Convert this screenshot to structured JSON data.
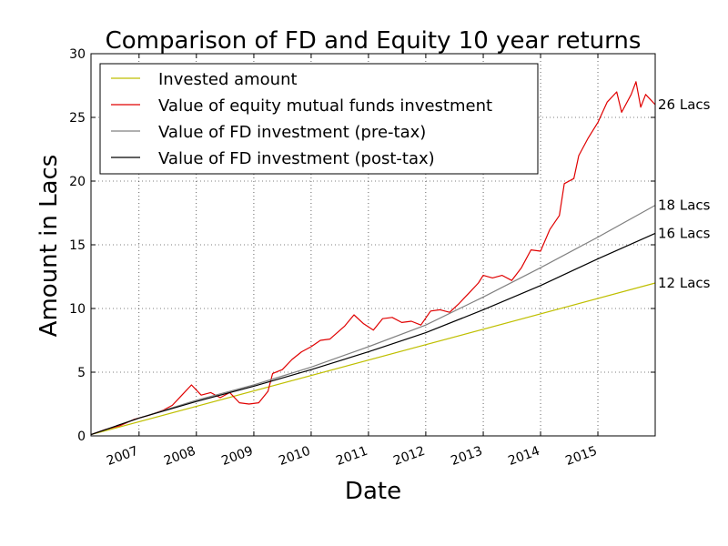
{
  "chart_data": {
    "type": "line",
    "title": "Comparison of FD and Equity 10 year returns",
    "xlabel": "Date",
    "ylabel": "Amount in Lacs",
    "xlim": [
      "2006-03-01",
      "2016-01-01"
    ],
    "ylim": [
      0,
      30
    ],
    "x_ticks": [
      "2007",
      "2008",
      "2009",
      "2010",
      "2011",
      "2012",
      "2013",
      "2014",
      "2015"
    ],
    "y_ticks": [
      0,
      5,
      10,
      15,
      20,
      25,
      30
    ],
    "grid": true,
    "legend_position": "top-left",
    "series": [
      {
        "name": "Invested amount",
        "color": "#bfbf00",
        "end_label": "12 Lacs",
        "points": [
          [
            "2006-03-01",
            0.1
          ],
          [
            "2016-01-01",
            12.0
          ]
        ]
      },
      {
        "name": "Value of equity mutual funds investment",
        "color": "#e00000",
        "end_label": "26 Lacs",
        "points": [
          [
            "2006-03-01",
            0.1
          ],
          [
            "2006-06-01",
            0.5
          ],
          [
            "2006-09-01",
            0.8
          ],
          [
            "2006-12-01",
            1.3
          ],
          [
            "2007-03-01",
            1.6
          ],
          [
            "2007-06-01",
            2.0
          ],
          [
            "2007-08-01",
            2.4
          ],
          [
            "2007-10-01",
            3.2
          ],
          [
            "2007-12-01",
            4.0
          ],
          [
            "2008-02-01",
            3.2
          ],
          [
            "2008-04-01",
            3.4
          ],
          [
            "2008-06-01",
            3.0
          ],
          [
            "2008-08-01",
            3.4
          ],
          [
            "2008-10-01",
            2.6
          ],
          [
            "2008-12-01",
            2.5
          ],
          [
            "2009-02-01",
            2.6
          ],
          [
            "2009-04-01",
            3.5
          ],
          [
            "2009-05-01",
            4.9
          ],
          [
            "2009-07-01",
            5.2
          ],
          [
            "2009-09-01",
            6.0
          ],
          [
            "2009-11-01",
            6.6
          ],
          [
            "2010-01-01",
            7.0
          ],
          [
            "2010-03-01",
            7.5
          ],
          [
            "2010-05-01",
            7.6
          ],
          [
            "2010-08-01",
            8.6
          ],
          [
            "2010-10-01",
            9.5
          ],
          [
            "2010-12-01",
            8.8
          ],
          [
            "2011-02-01",
            8.3
          ],
          [
            "2011-04-01",
            9.2
          ],
          [
            "2011-06-01",
            9.3
          ],
          [
            "2011-08-01",
            8.9
          ],
          [
            "2011-10-01",
            9.0
          ],
          [
            "2011-12-01",
            8.7
          ],
          [
            "2012-02-01",
            9.8
          ],
          [
            "2012-04-01",
            9.9
          ],
          [
            "2012-06-01",
            9.7
          ],
          [
            "2012-08-01",
            10.4
          ],
          [
            "2012-10-01",
            11.2
          ],
          [
            "2012-12-01",
            12.0
          ],
          [
            "2013-01-01",
            12.6
          ],
          [
            "2013-03-01",
            12.4
          ],
          [
            "2013-05-01",
            12.6
          ],
          [
            "2013-07-01",
            12.2
          ],
          [
            "2013-09-01",
            13.2
          ],
          [
            "2013-11-01",
            14.6
          ],
          [
            "2014-01-01",
            14.5
          ],
          [
            "2014-03-01",
            16.2
          ],
          [
            "2014-05-01",
            17.3
          ],
          [
            "2014-06-01",
            19.8
          ],
          [
            "2014-08-01",
            20.2
          ],
          [
            "2014-09-01",
            22.0
          ],
          [
            "2014-11-01",
            23.4
          ],
          [
            "2015-01-01",
            24.6
          ],
          [
            "2015-03-01",
            26.2
          ],
          [
            "2015-05-01",
            27.0
          ],
          [
            "2015-06-01",
            25.4
          ],
          [
            "2015-08-01",
            26.8
          ],
          [
            "2015-09-01",
            27.8
          ],
          [
            "2015-10-01",
            25.8
          ],
          [
            "2015-11-01",
            26.8
          ],
          [
            "2016-01-01",
            26.0
          ]
        ]
      },
      {
        "name": "Value of FD investment (pre-tax)",
        "color": "#808080",
        "end_label": "18 Lacs",
        "points": [
          [
            "2006-03-01",
            0.1
          ],
          [
            "2007-01-01",
            1.4
          ],
          [
            "2008-01-01",
            2.8
          ],
          [
            "2009-01-01",
            4.0
          ],
          [
            "2010-01-01",
            5.4
          ],
          [
            "2011-01-01",
            7.0
          ],
          [
            "2012-01-01",
            8.7
          ],
          [
            "2013-01-01",
            10.9
          ],
          [
            "2014-01-01",
            13.2
          ],
          [
            "2015-01-01",
            15.6
          ],
          [
            "2016-01-01",
            18.1
          ]
        ]
      },
      {
        "name": "Value of FD investment (post-tax)",
        "color": "#000000",
        "end_label": "16 Lacs",
        "points": [
          [
            "2006-03-01",
            0.1
          ],
          [
            "2007-01-01",
            1.4
          ],
          [
            "2008-01-01",
            2.7
          ],
          [
            "2009-01-01",
            3.9
          ],
          [
            "2010-01-01",
            5.2
          ],
          [
            "2011-01-01",
            6.6
          ],
          [
            "2012-01-01",
            8.1
          ],
          [
            "2013-01-01",
            9.9
          ],
          [
            "2014-01-01",
            11.8
          ],
          [
            "2015-01-01",
            13.9
          ],
          [
            "2016-01-01",
            15.9
          ]
        ]
      }
    ]
  }
}
